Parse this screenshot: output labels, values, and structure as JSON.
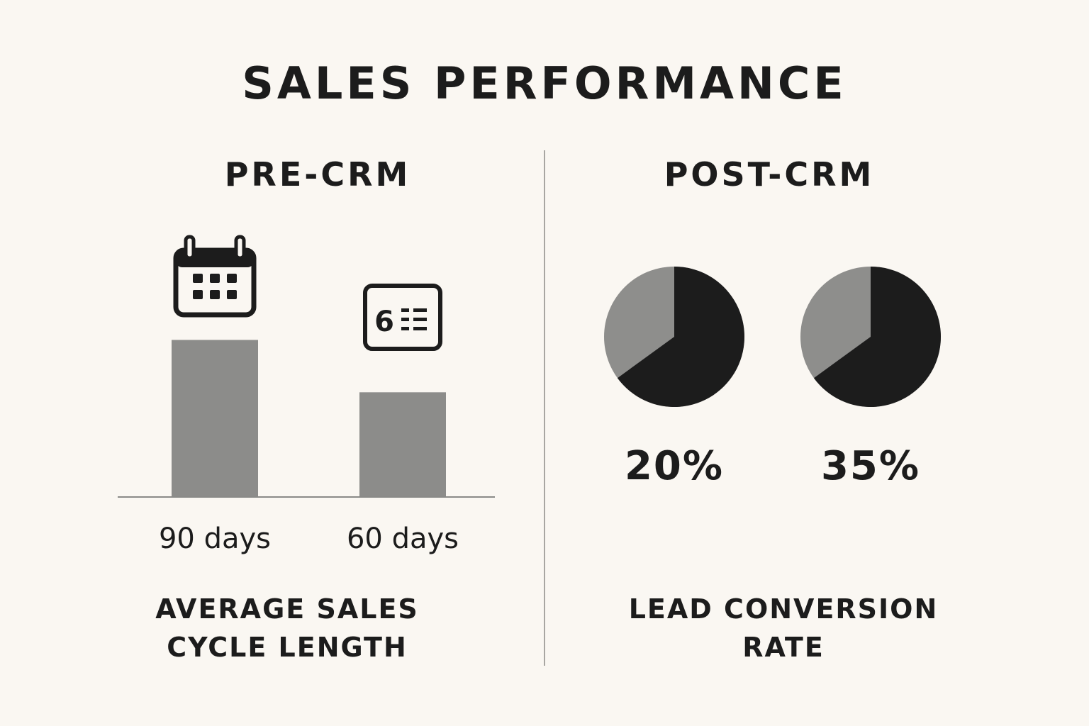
{
  "title": "SALES PERFORMANCE",
  "sections": {
    "pre": {
      "heading": "PRE-CRM",
      "caption_line1": "AVERAGE SALES",
      "caption_line2": "CYCLE LENGTH"
    },
    "post": {
      "heading": "POST-CRM",
      "caption_line1": "LEAD CONVERSION",
      "caption_line2": "RATE"
    }
  },
  "icons": {
    "bar1": "calendar-icon",
    "bar2": "calendar-six-icon",
    "bar2_icon_text": "6"
  },
  "colors": {
    "bar": "#8c8c8a",
    "pie_dark": "#1c1c1c",
    "pie_light": "#8e8e8c",
    "background": "#faf7f2",
    "text": "#1c1c1c"
  },
  "chart_data": [
    {
      "type": "bar",
      "categories": [
        "90 days",
        "60 days"
      ],
      "values": [
        90,
        60
      ],
      "ylim": [
        0,
        130
      ],
      "title": "",
      "xlabel": "",
      "ylabel": ""
    },
    {
      "type": "pie",
      "labels": [
        "20%",
        "35%"
      ],
      "dark_share": [
        0.65,
        0.65
      ]
    }
  ]
}
